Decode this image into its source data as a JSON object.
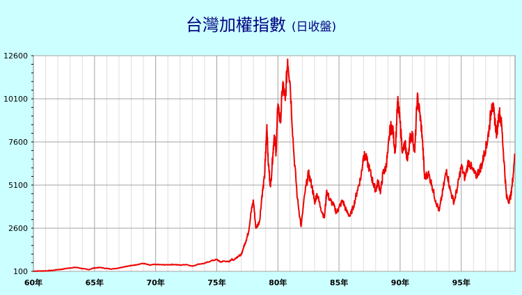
{
  "colors": {
    "background": "#ccffff",
    "plot_background": "#ffffff",
    "grid": "#a0a0a0",
    "series": "#ee0000",
    "title": "#000080"
  },
  "chart_data": {
    "type": "line",
    "title": "台灣加權指數",
    "subtitle": "(日收盤)",
    "xlabel": "",
    "ylabel": "",
    "xlim": [
      60,
      99.4
    ],
    "ylim": [
      100,
      12600
    ],
    "grid": true,
    "y_ticks": [
      100,
      2600,
      5100,
      7600,
      10100,
      12600
    ],
    "y_tick_labels": [
      "100",
      "2600",
      "5100",
      "7600",
      "10100",
      "12600"
    ],
    "x_ticks": [
      60,
      65,
      70,
      75,
      80,
      85,
      90,
      95
    ],
    "x_tick_labels": [
      "60年",
      "65年",
      "70年",
      "75年",
      "80年",
      "85年",
      "90年",
      "95年"
    ],
    "series": [
      {
        "x": [
          60,
          60.5,
          61,
          61.5,
          62,
          62.5,
          63,
          63.5,
          64,
          64.5,
          65,
          65.5,
          66,
          66.5,
          67,
          67.5,
          68,
          68.5,
          69,
          69.5,
          70,
          70.5,
          71,
          71.5,
          72,
          72.5,
          73,
          73.5,
          74,
          74.5,
          75,
          75.3,
          75.6,
          76,
          76.2,
          76.4,
          76.6,
          76.8,
          77,
          77.2,
          77.4,
          77.6,
          77.8,
          78,
          78.2,
          78.5,
          78.7,
          78.9,
          79,
          79.1,
          79.2,
          79.4,
          79.6,
          79.7,
          79.85,
          80,
          80.2,
          80.4,
          80.6,
          80.8,
          81,
          81.3,
          81.6,
          81.9,
          82.2,
          82.5,
          82.8,
          83,
          83.2,
          83.5,
          83.8,
          84,
          84.2,
          84.5,
          84.8,
          85,
          85.3,
          85.6,
          85.9,
          86.2,
          86.5,
          86.8,
          87,
          87.2,
          87.5,
          87.8,
          88,
          88.2,
          88.4,
          88.6,
          88.8,
          89,
          89.2,
          89.4,
          89.6,
          89.8,
          90,
          90.2,
          90.4,
          90.6,
          90.8,
          91,
          91.2,
          91.4,
          91.6,
          91.8,
          92,
          92.3,
          92.6,
          92.9,
          93.2,
          93.5,
          93.8,
          94.1,
          94.4,
          94.7,
          95,
          95.3,
          95.6,
          95.9,
          96.2,
          96.5,
          96.7,
          96.9,
          97.1,
          97.3,
          97.5,
          97.7,
          97.9,
          98.1,
          98.3,
          98.5,
          98.7,
          98.9,
          99.1,
          99.4
        ],
        "y": [
          110,
          120,
          130,
          150,
          200,
          240,
          300,
          330,
          260,
          200,
          300,
          320,
          260,
          240,
          300,
          380,
          430,
          500,
          560,
          460,
          500,
          480,
          480,
          500,
          460,
          500,
          400,
          520,
          560,
          700,
          790,
          640,
          700,
          650,
          800,
          760,
          900,
          1000,
          1050,
          1500,
          1900,
          2400,
          3500,
          4200,
          2600,
          3000,
          4500,
          5500,
          7000,
          8600,
          6500,
          5000,
          7000,
          8000,
          7000,
          9800,
          8700,
          11000,
          10000,
          12400,
          11000,
          7000,
          4300,
          2700,
          4600,
          5800,
          5000,
          4100,
          4600,
          3800,
          3200,
          4800,
          4300,
          4000,
          3500,
          3800,
          4200,
          3600,
          3300,
          3900,
          4800,
          5600,
          6800,
          6700,
          6000,
          5200,
          4800,
          5300,
          4700,
          5800,
          6000,
          7000,
          8500,
          8300,
          7000,
          10000,
          8700,
          7000,
          7500,
          6500,
          7800,
          8000,
          7000,
          10200,
          9300,
          8000,
          5500,
          5800,
          5100,
          4200,
          3600,
          4800,
          6000,
          4800,
          4100,
          5000,
          6200,
          5500,
          6500,
          6000,
          5600,
          6000,
          6300,
          7000,
          7500,
          8500,
          9800,
          9200,
          8000,
          9400,
          8600,
          6500,
          4400,
          4200,
          4600,
          6900
        ]
      }
    ]
  }
}
